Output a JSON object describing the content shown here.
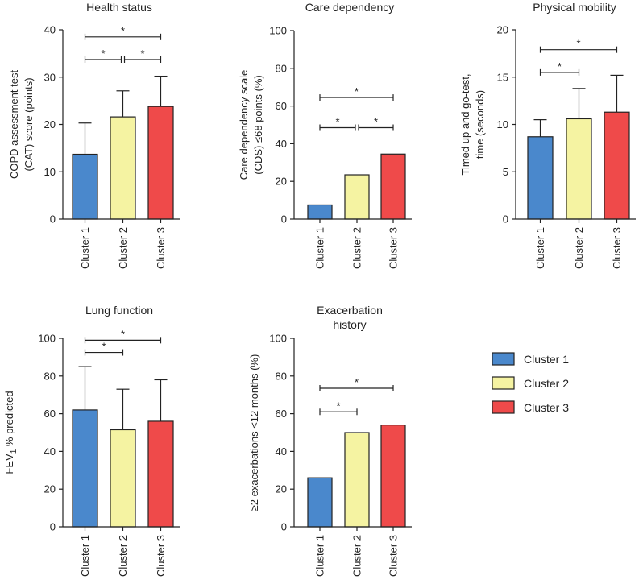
{
  "colors": {
    "cluster1": "#4a88cc",
    "cluster2": "#f5f3a2",
    "cluster3": "#ef4a4a",
    "ink": "#222222"
  },
  "legend": {
    "items": [
      {
        "label": "Cluster 1",
        "color": "#4a88cc"
      },
      {
        "label": "Cluster 2",
        "color": "#f5f3a2"
      },
      {
        "label": "Cluster 3",
        "color": "#ef4a4a"
      }
    ]
  },
  "chart_data": [
    {
      "type": "bar",
      "title": "Health status",
      "ylabel_lines": [
        "COPD assessment test",
        "(CAT) score (points)"
      ],
      "ylim": [
        0,
        40
      ],
      "yticks": [
        0,
        10,
        20,
        30,
        40
      ],
      "categories": [
        "Cluster 1",
        "Cluster 2",
        "Cluster 3"
      ],
      "values": [
        13.7,
        21.6,
        23.8
      ],
      "error_upper": [
        20.3,
        27.1,
        30.2
      ],
      "significance": [
        {
          "from": 0,
          "to": 2,
          "y": 38.5,
          "label": "*"
        },
        {
          "from": 0,
          "to": 1,
          "y": 33.7,
          "label": "*"
        },
        {
          "from": 1,
          "to": 2,
          "y": 33.7,
          "label": "*"
        }
      ]
    },
    {
      "type": "bar",
      "title": "Care dependency",
      "ylabel_lines": [
        "Care dependency scale",
        "(CDS) ≤68 points (%)"
      ],
      "ylim": [
        0,
        100
      ],
      "yticks": [
        0,
        20,
        40,
        60,
        80,
        100
      ],
      "categories": [
        "Cluster 1",
        "Cluster 2",
        "Cluster 3"
      ],
      "values": [
        7.5,
        23.5,
        34.5
      ],
      "error_upper": [],
      "significance": [
        {
          "from": 0,
          "to": 2,
          "y": 64.5,
          "label": "*"
        },
        {
          "from": 0,
          "to": 1,
          "y": 48.5,
          "label": "*"
        },
        {
          "from": 1,
          "to": 2,
          "y": 48.5,
          "label": "*"
        }
      ]
    },
    {
      "type": "bar",
      "title": "Physical mobility",
      "ylabel_lines": [
        "Timed up and go-test,",
        "time (seconds)"
      ],
      "ylim": [
        0,
        20
      ],
      "yticks": [
        0,
        5,
        10,
        15,
        20
      ],
      "categories": [
        "Cluster 1",
        "Cluster 2",
        "Cluster 3"
      ],
      "values": [
        8.7,
        10.6,
        11.3
      ],
      "error_upper": [
        10.5,
        13.8,
        15.2
      ],
      "significance": [
        {
          "from": 0,
          "to": 2,
          "y": 17.9,
          "label": "*"
        },
        {
          "from": 0,
          "to": 1,
          "y": 15.5,
          "label": "*"
        }
      ]
    },
    {
      "type": "bar",
      "title": "Lung function",
      "ylabel_main": "FEV",
      "ylabel_sub": "1",
      "ylabel_rest": " % predicted",
      "ylim": [
        0,
        100
      ],
      "yticks": [
        0,
        20,
        40,
        60,
        80,
        100
      ],
      "categories": [
        "Cluster 1",
        "Cluster 2",
        "Cluster 3"
      ],
      "values": [
        62,
        51.5,
        56
      ],
      "error_upper": [
        85,
        73,
        78
      ],
      "significance": [
        {
          "from": 0,
          "to": 2,
          "y": 99,
          "label": "*"
        },
        {
          "from": 0,
          "to": 1,
          "y": 92.5,
          "label": "*"
        }
      ]
    },
    {
      "type": "bar",
      "title_lines": [
        "Exacerbation",
        "history"
      ],
      "ylabel_lines": [
        "≥2 exacerbations <12 months (%)"
      ],
      "ylim": [
        0,
        100
      ],
      "yticks": [
        0,
        20,
        40,
        60,
        80,
        100
      ],
      "categories": [
        "Cluster 1",
        "Cluster 2",
        "Cluster 3"
      ],
      "values": [
        26,
        50,
        54
      ],
      "error_upper": [],
      "significance": [
        {
          "from": 0,
          "to": 2,
          "y": 73.5,
          "label": "*"
        },
        {
          "from": 0,
          "to": 1,
          "y": 61,
          "label": "*"
        }
      ]
    }
  ]
}
